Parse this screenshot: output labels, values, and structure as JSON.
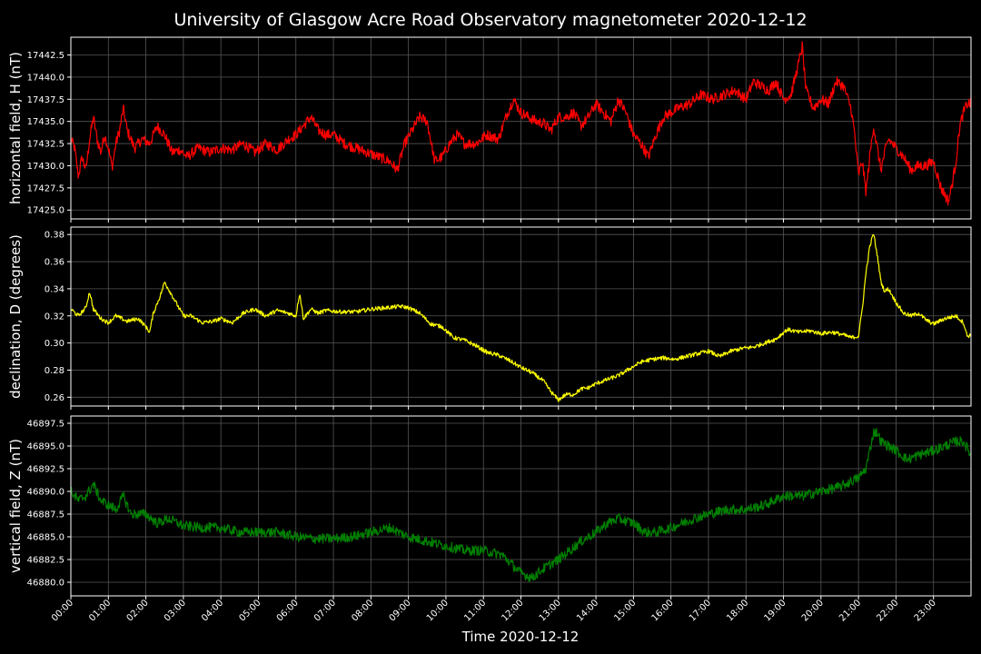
{
  "chart_data": {
    "type": "line",
    "title": "University of Glasgow Acre Road Observatory magnetometer 2020-12-12",
    "xlabel": "Time 2020-12-12",
    "x_ticks": [
      "00:00",
      "01:00",
      "02:00",
      "03:00",
      "04:00",
      "05:00",
      "06:00",
      "07:00",
      "08:00",
      "09:00",
      "10:00",
      "11:00",
      "12:00",
      "13:00",
      "14:00",
      "15:00",
      "16:00",
      "17:00",
      "18:00",
      "19:00",
      "20:00",
      "21:00",
      "22:00",
      "23:00"
    ],
    "xlim_hours": [
      0,
      24
    ],
    "grid": true,
    "background": "#000000",
    "foreground": "#ffffff",
    "panels": [
      {
        "ylabel": "horizontal field, H (nT)",
        "color": "#ff0000",
        "ylim": [
          17424.0,
          17444.5
        ],
        "yticks": [
          "17425.0",
          "17427.5",
          "17430.0",
          "17432.5",
          "17435.0",
          "17437.5",
          "17440.0",
          "17442.5"
        ],
        "ytick_values": [
          17425.0,
          17427.5,
          17430.0,
          17432.5,
          17435.0,
          17437.5,
          17440.0,
          17442.5
        ],
        "noise": 0.6,
        "series": {
          "x": [
            0,
            0.1,
            0.2,
            0.3,
            0.4,
            0.5,
            0.6,
            0.7,
            0.8,
            0.9,
            1.0,
            1.1,
            1.2,
            1.3,
            1.4,
            1.5,
            1.7,
            1.9,
            2.1,
            2.3,
            2.5,
            2.7,
            2.9,
            3.1,
            3.4,
            3.7,
            4.0,
            4.3,
            4.6,
            4.9,
            5.2,
            5.5,
            5.8,
            6.0,
            6.2,
            6.4,
            6.6,
            6.8,
            7.0,
            7.3,
            7.6,
            7.9,
            8.2,
            8.5,
            8.7,
            8.9,
            9.1,
            9.3,
            9.5,
            9.7,
            9.9,
            10.1,
            10.3,
            10.5,
            10.8,
            11.1,
            11.4,
            11.6,
            11.8,
            12.0,
            12.2,
            12.4,
            12.6,
            12.8,
            13.0,
            13.2,
            13.4,
            13.6,
            13.8,
            14.0,
            14.2,
            14.4,
            14.6,
            14.8,
            15.0,
            15.2,
            15.4,
            15.6,
            15.8,
            16.0,
            16.2,
            16.5,
            16.8,
            17.1,
            17.4,
            17.7,
            18.0,
            18.2,
            18.4,
            18.6,
            18.8,
            19.0,
            19.2,
            19.4,
            19.5,
            19.6,
            19.8,
            20.0,
            20.2,
            20.4,
            20.6,
            20.8,
            20.9,
            21.0,
            21.1,
            21.2,
            21.3,
            21.4,
            21.5,
            21.6,
            21.7,
            21.8,
            21.9,
            22.0,
            22.2,
            22.4,
            22.6,
            22.8,
            23.0,
            23.2,
            23.4,
            23.5,
            23.6,
            23.7,
            23.8,
            23.9,
            24.0
          ],
          "y": [
            17433.0,
            17432.0,
            17428.8,
            17431.0,
            17429.5,
            17433.0,
            17435.5,
            17433.0,
            17431.5,
            17433.5,
            17432.0,
            17429.8,
            17432.5,
            17434.0,
            17436.5,
            17434.0,
            17432.0,
            17433.0,
            17432.5,
            17434.5,
            17433.5,
            17431.5,
            17431.8,
            17431.0,
            17432.0,
            17431.5,
            17432.0,
            17431.8,
            17432.5,
            17431.5,
            17432.5,
            17431.8,
            17433.0,
            17433.5,
            17434.5,
            17435.5,
            17434.0,
            17433.5,
            17433.5,
            17432.5,
            17432.0,
            17431.5,
            17431.0,
            17430.5,
            17429.5,
            17432.5,
            17434.0,
            17435.5,
            17435.0,
            17430.5,
            17431.0,
            17432.5,
            17433.5,
            17432.5,
            17432.5,
            17433.5,
            17433.0,
            17435.5,
            17437.5,
            17436.0,
            17435.5,
            17435.0,
            17434.8,
            17434.0,
            17435.5,
            17435.5,
            17436.0,
            17434.5,
            17435.5,
            17437.0,
            17436.0,
            17435.0,
            17437.5,
            17436.0,
            17433.5,
            17432.5,
            17431.0,
            17433.5,
            17435.5,
            17436.0,
            17436.5,
            17437.0,
            17438.0,
            17437.5,
            17438.0,
            17438.5,
            17437.5,
            17439.5,
            17439.0,
            17438.5,
            17439.5,
            17437.5,
            17438.0,
            17441.5,
            17443.5,
            17438.5,
            17436.5,
            17437.5,
            17437.0,
            17439.5,
            17439.0,
            17436.5,
            17433.5,
            17429.0,
            17430.5,
            17427.0,
            17431.0,
            17434.5,
            17432.0,
            17429.5,
            17431.5,
            17433.0,
            17432.5,
            17432.0,
            17431.0,
            17429.5,
            17430.0,
            17430.0,
            17430.5,
            17427.5,
            17426.0,
            17428.0,
            17430.5,
            17434.5,
            17436.0,
            17437.0,
            17437.0
          ]
        }
      },
      {
        "ylabel": "declination, D (degrees)",
        "color": "#ffff00",
        "ylim": [
          0.2535,
          0.3855
        ],
        "yticks": [
          "0.26",
          "0.28",
          "0.30",
          "0.32",
          "0.34",
          "0.36",
          "0.38"
        ],
        "ytick_values": [
          0.26,
          0.28,
          0.3,
          0.32,
          0.34,
          0.36,
          0.38
        ],
        "noise": 0.0015,
        "series": {
          "x": [
            0,
            0.2,
            0.4,
            0.5,
            0.6,
            0.8,
            1.0,
            1.2,
            1.5,
            1.8,
            2.0,
            2.1,
            2.2,
            2.4,
            2.5,
            2.6,
            2.8,
            3.0,
            3.2,
            3.5,
            3.8,
            4.0,
            4.3,
            4.6,
            4.9,
            5.2,
            5.5,
            5.8,
            6.0,
            6.1,
            6.2,
            6.4,
            6.6,
            6.8,
            7.2,
            7.6,
            8.0,
            8.4,
            8.8,
            9.0,
            9.3,
            9.6,
            9.9,
            10.2,
            10.5,
            10.8,
            11.1,
            11.4,
            11.7,
            12.0,
            12.3,
            12.6,
            12.8,
            13.0,
            13.2,
            13.4,
            13.6,
            13.8,
            14.0,
            14.3,
            14.6,
            14.9,
            15.2,
            15.5,
            15.8,
            16.1,
            16.4,
            16.7,
            17.0,
            17.3,
            17.6,
            17.9,
            18.2,
            18.5,
            18.8,
            19.1,
            19.4,
            19.7,
            20.0,
            20.3,
            20.6,
            20.8,
            21.0,
            21.1,
            21.2,
            21.3,
            21.4,
            21.5,
            21.6,
            21.7,
            21.8,
            22.0,
            22.2,
            22.4,
            22.6,
            22.8,
            23.0,
            23.3,
            23.6,
            23.8,
            23.9,
            24.0
          ],
          "y": [
            0.325,
            0.32,
            0.326,
            0.338,
            0.325,
            0.318,
            0.315,
            0.32,
            0.316,
            0.318,
            0.312,
            0.308,
            0.322,
            0.336,
            0.345,
            0.34,
            0.33,
            0.32,
            0.32,
            0.315,
            0.316,
            0.318,
            0.315,
            0.322,
            0.325,
            0.32,
            0.324,
            0.322,
            0.32,
            0.337,
            0.318,
            0.325,
            0.322,
            0.324,
            0.323,
            0.323,
            0.325,
            0.326,
            0.327,
            0.326,
            0.322,
            0.314,
            0.312,
            0.304,
            0.302,
            0.298,
            0.293,
            0.291,
            0.287,
            0.282,
            0.278,
            0.272,
            0.264,
            0.258,
            0.262,
            0.262,
            0.266,
            0.267,
            0.27,
            0.273,
            0.276,
            0.281,
            0.286,
            0.288,
            0.289,
            0.288,
            0.29,
            0.292,
            0.294,
            0.29,
            0.294,
            0.296,
            0.297,
            0.3,
            0.303,
            0.31,
            0.308,
            0.309,
            0.307,
            0.308,
            0.306,
            0.304,
            0.305,
            0.325,
            0.352,
            0.371,
            0.381,
            0.365,
            0.345,
            0.338,
            0.34,
            0.33,
            0.322,
            0.32,
            0.322,
            0.317,
            0.314,
            0.318,
            0.32,
            0.315,
            0.305,
            0.306
          ]
        }
      },
      {
        "ylabel": "vertical field, Z (nT)",
        "color": "#008000",
        "ylim": [
          46878.5,
          46898.3
        ],
        "yticks": [
          "46880.0",
          "46882.5",
          "46885.0",
          "46887.5",
          "46890.0",
          "46892.5",
          "46895.0",
          "46897.5"
        ],
        "ytick_values": [
          46880.0,
          46882.5,
          46885.0,
          46887.5,
          46890.0,
          46892.5,
          46895.0,
          46897.5
        ],
        "noise": 0.55,
        "series": {
          "x": [
            0,
            0.2,
            0.4,
            0.6,
            0.8,
            1.0,
            1.2,
            1.4,
            1.6,
            1.8,
            2.0,
            2.3,
            2.6,
            3.0,
            3.5,
            4.0,
            4.5,
            5.0,
            5.5,
            6.0,
            6.5,
            7.0,
            7.5,
            8.0,
            8.5,
            9.0,
            9.5,
            10.0,
            10.5,
            11.0,
            11.5,
            12.0,
            12.3,
            12.6,
            13.0,
            13.3,
            13.6,
            14.0,
            14.3,
            14.6,
            15.0,
            15.3,
            15.6,
            16.0,
            16.3,
            16.6,
            17.0,
            17.5,
            18.0,
            18.5,
            19.0,
            19.5,
            20.0,
            20.5,
            21.0,
            21.2,
            21.4,
            21.5,
            21.6,
            21.8,
            22.0,
            22.3,
            22.6,
            23.0,
            23.3,
            23.6,
            23.8,
            24.0
          ],
          "y": [
            46890.0,
            46889.0,
            46889.5,
            46890.8,
            46889.0,
            46888.5,
            46888.0,
            46889.5,
            46887.5,
            46887.5,
            46887.5,
            46886.5,
            46887.0,
            46886.2,
            46886.0,
            46886.0,
            46885.5,
            46885.5,
            46885.5,
            46885.0,
            46884.8,
            46884.8,
            46885.0,
            46885.5,
            46886.0,
            46885.0,
            46884.5,
            46884.0,
            46883.5,
            46883.5,
            46883.0,
            46881.0,
            46880.5,
            46881.5,
            46882.5,
            46883.5,
            46884.5,
            46885.5,
            46886.5,
            46887.0,
            46886.5,
            46885.5,
            46885.5,
            46886.0,
            46886.5,
            46887.0,
            46887.5,
            46888.0,
            46888.0,
            46888.5,
            46889.5,
            46889.5,
            46890.0,
            46890.5,
            46891.5,
            46892.5,
            46896.5,
            46896.5,
            46895.5,
            46895.0,
            46894.5,
            46893.5,
            46894.0,
            46894.5,
            46895.0,
            46895.5,
            46895.5,
            46894.0
          ]
        }
      }
    ]
  }
}
